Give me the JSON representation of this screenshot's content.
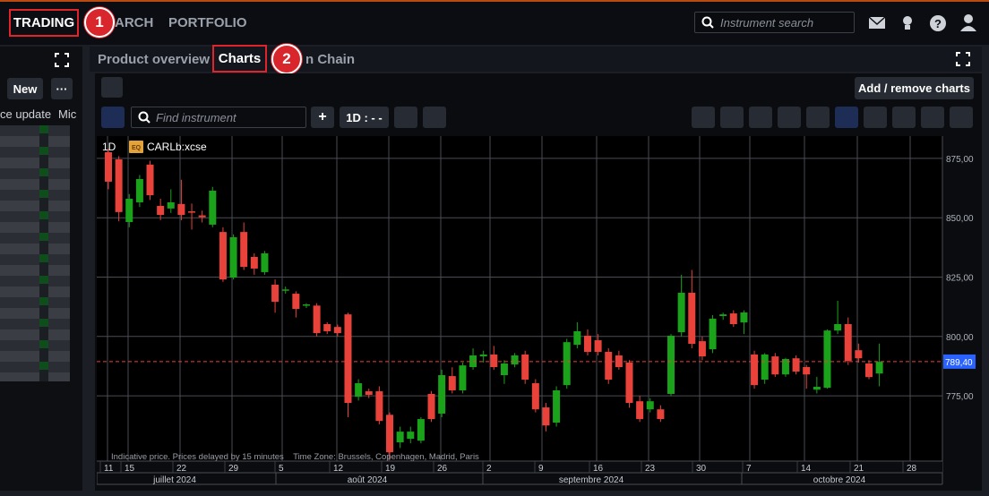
{
  "nav": {
    "items": [
      "TRADING",
      "ARCH",
      "PORTFOLIO"
    ],
    "search_placeholder": "Instrument search"
  },
  "annotations": [
    1,
    2
  ],
  "left_panel": {
    "buttons": [
      "New",
      "···"
    ],
    "columns": [
      "ce update",
      "Mic"
    ]
  },
  "tabs": [
    "Product overview",
    "Charts",
    "n Chain"
  ],
  "toolbar": {
    "add_remove": "Add / remove charts",
    "find": "Find instrument",
    "plus": "+",
    "interval": "1D : - -"
  },
  "chart_data": {
    "type": "candlestick",
    "interval": "1D",
    "badge": "EQ",
    "instrument": "CARLb:xcse",
    "footnote": "Indicative price. Prices delayed by 15 minutes    Time Zone: Brussels, Copenhagen, Madrid, Paris",
    "up_color": "#1aa21a",
    "down_color": "#e8423a",
    "open": [
      877.6,
      874.6,
      848.2,
      856.5,
      872.4,
      855,
      853.9,
      855.8,
      852.7,
      851,
      847.1,
      844,
      824.8,
      844,
      833.5,
      827.1,
      821.8,
      819.5,
      818,
      813,
      813,
      805.2,
      804,
      809.3,
      774.6,
      776.9,
      776.9,
      767,
      755.4,
      756.9,
      756.1,
      775.8,
      767.5,
      783.3,
      777.3,
      787.1,
      791.6,
      792.4,
      783.7,
      788.2,
      792.4,
      780.3,
      770.1,
      763.7,
      779.5,
      796.5,
      800.3,
      798.4,
      793.5,
      792,
      789,
      772.7,
      769.3,
      769.3,
      775.8,
      801.8,
      818.4,
      798,
      794.6,
      808.6,
      809.7,
      805.9,
      792.4,
      781.8,
      791.6,
      784,
      790.8,
      787.1,
      777.6,
      778.4,
      802.5,
      805.2,
      794.2,
      788.6,
      784.4
    ],
    "high": [
      879,
      876,
      860,
      868,
      874,
      858,
      862,
      866,
      856,
      853,
      863,
      846,
      843,
      848,
      835,
      836,
      824,
      821,
      819,
      814,
      814,
      806,
      805,
      810,
      782,
      778,
      779,
      768,
      762,
      762,
      766,
      777,
      786,
      787,
      789,
      795,
      794,
      796,
      790,
      793,
      794,
      782,
      772,
      779,
      799,
      806,
      803,
      801,
      795,
      794,
      790,
      775,
      774,
      771,
      801,
      826,
      828,
      800,
      809,
      810,
      811,
      811,
      794,
      793,
      793,
      791,
      792,
      788,
      783,
      803,
      815,
      808,
      797,
      790,
      797
    ],
    "low": [
      862,
      848.5,
      846,
      854.5,
      857.5,
      849,
      852,
      849,
      845,
      848,
      846,
      823,
      824,
      828,
      826,
      826,
      810,
      818,
      808,
      812,
      800,
      801,
      800,
      766,
      773,
      774,
      763,
      748,
      753,
      755,
      755,
      764,
      766,
      776,
      776,
      786,
      789,
      786,
      780,
      787,
      780,
      768,
      760,
      762,
      778,
      795,
      792,
      792,
      780,
      786,
      770,
      764,
      768,
      764,
      775,
      800,
      795,
      790,
      793,
      807,
      804,
      801,
      778,
      780,
      783,
      783,
      784,
      778,
      776,
      778,
      801,
      788,
      789,
      782,
      779
    ],
    "close": [
      865.2,
      852.4,
      858,
      866.3,
      859.5,
      851.2,
      856.5,
      851.2,
      852.3,
      850.2,
      861.4,
      824,
      841.8,
      829.3,
      828.6,
      835,
      814.6,
      819.8,
      811.6,
      813.5,
      801.4,
      802.2,
      801.4,
      772,
      780.3,
      775.4,
      764.4,
      751.2,
      759.9,
      759.9,
      765.2,
      765.2,
      783.7,
      777.3,
      787.8,
      792,
      792.4,
      787.1,
      788.6,
      792,
      781.8,
      769.3,
      762.5,
      777.3,
      797.6,
      802.2,
      793.5,
      793.5,
      781.8,
      787.1,
      772,
      765.2,
      772.7,
      765.2,
      800.3,
      818.4,
      796.9,
      791.6,
      807.5,
      809.3,
      805.2,
      810.1,
      779.5,
      792.4,
      784,
      790.5,
      785.2,
      784,
      778.8,
      802.5,
      805.2,
      789.7,
      790.8,
      782.9,
      789.3
    ],
    "ylim": [
      747.5,
      884.4
    ],
    "yticks": [
      {
        "value": 775,
        "label": "775,00"
      },
      {
        "value": 800,
        "label": "800,00"
      },
      {
        "value": 825,
        "label": "825,00"
      },
      {
        "value": 850,
        "label": "850,00"
      },
      {
        "value": 875,
        "label": "875,00"
      }
    ],
    "current_price": {
      "value": 789.4,
      "label": "789,40"
    },
    "xtick_labels": [
      "11",
      "15",
      "22",
      "29",
      "5",
      "12",
      "19",
      "26",
      "2",
      "9",
      "16",
      "23",
      "30",
      "7",
      "14",
      "21",
      "28"
    ],
    "months": [
      "juillet 2024",
      "août 2024",
      "septembre 2024",
      "octobre 2024"
    ],
    "grid": true
  }
}
